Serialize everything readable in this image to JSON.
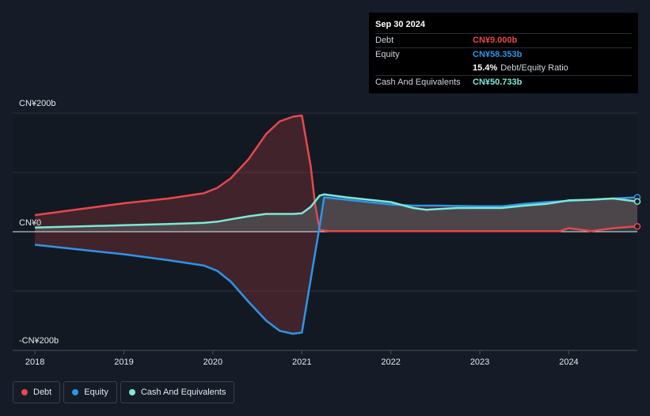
{
  "tooltip": {
    "date": "Sep 30 2024",
    "rows": [
      {
        "label": "Debt",
        "value": "CN¥9.000b",
        "color": "#e8474c",
        "extra": ""
      },
      {
        "label": "Equity",
        "value": "CN¥58.353b",
        "color": "#2e95e6",
        "extra": ""
      },
      {
        "label": "",
        "value": "15.4%",
        "color": "#ffffff",
        "extra": "Debt/Equity Ratio"
      },
      {
        "label": "Cash And Equivalents",
        "value": "CN¥50.733b",
        "color": "#7ee8d6",
        "extra": ""
      }
    ]
  },
  "legend": [
    {
      "label": "Debt",
      "color": "#e8474c"
    },
    {
      "label": "Equity",
      "color": "#2e95e6"
    },
    {
      "label": "Cash And Equivalents",
      "color": "#7ee8d6"
    }
  ],
  "chart_data": {
    "type": "area",
    "y_ticks": [
      {
        "value": 200,
        "label": "CN¥200b"
      },
      {
        "value": 0,
        "label": "CN¥0"
      },
      {
        "value": -200,
        "label": "-CN¥200b"
      }
    ],
    "x_ticks": [
      "2018",
      "2019",
      "2020",
      "2021",
      "2022",
      "2023",
      "2024"
    ],
    "xlim": [
      2017.75,
      2024.77
    ],
    "ylim": [
      -200,
      200
    ],
    "series": [
      {
        "name": "Debt",
        "color": "#e8474c",
        "points": [
          [
            2018.0,
            28
          ],
          [
            2018.5,
            38
          ],
          [
            2019.0,
            48
          ],
          [
            2019.5,
            56
          ],
          [
            2019.9,
            65
          ],
          [
            2020.05,
            74
          ],
          [
            2020.2,
            90
          ],
          [
            2020.4,
            122
          ],
          [
            2020.6,
            165
          ],
          [
            2020.75,
            186
          ],
          [
            2020.9,
            194
          ],
          [
            2021.0,
            196
          ],
          [
            2021.1,
            110
          ],
          [
            2021.15,
            45
          ],
          [
            2021.2,
            3
          ],
          [
            2021.3,
            1
          ],
          [
            2021.5,
            1
          ],
          [
            2022.0,
            1
          ],
          [
            2022.5,
            1
          ],
          [
            2023.0,
            1
          ],
          [
            2023.5,
            1
          ],
          [
            2023.9,
            1
          ],
          [
            2024.0,
            6
          ],
          [
            2024.25,
            1
          ],
          [
            2024.5,
            6
          ],
          [
            2024.77,
            9
          ]
        ]
      },
      {
        "name": "Equity",
        "color": "#2e95e6",
        "points": [
          [
            2018.0,
            -22
          ],
          [
            2018.5,
            -30
          ],
          [
            2019.0,
            -38
          ],
          [
            2019.5,
            -48
          ],
          [
            2019.9,
            -57
          ],
          [
            2020.05,
            -66
          ],
          [
            2020.2,
            -84
          ],
          [
            2020.4,
            -118
          ],
          [
            2020.6,
            -150
          ],
          [
            2020.75,
            -167
          ],
          [
            2020.9,
            -172
          ],
          [
            2021.0,
            -170
          ],
          [
            2021.1,
            -80
          ],
          [
            2021.2,
            10
          ],
          [
            2021.25,
            58
          ],
          [
            2021.5,
            54
          ],
          [
            2022.0,
            46
          ],
          [
            2022.25,
            44
          ],
          [
            2022.5,
            44
          ],
          [
            2023.0,
            43
          ],
          [
            2023.25,
            43
          ],
          [
            2023.5,
            47
          ],
          [
            2023.75,
            50
          ],
          [
            2024.0,
            52
          ],
          [
            2024.25,
            54
          ],
          [
            2024.5,
            56
          ],
          [
            2024.77,
            58
          ]
        ]
      },
      {
        "name": "Cash And Equivalents",
        "color": "#7ee8d6",
        "points": [
          [
            2018.0,
            7
          ],
          [
            2018.5,
            9
          ],
          [
            2019.0,
            11
          ],
          [
            2019.5,
            13
          ],
          [
            2019.9,
            15
          ],
          [
            2020.05,
            17
          ],
          [
            2020.2,
            21
          ],
          [
            2020.4,
            26
          ],
          [
            2020.6,
            30
          ],
          [
            2020.75,
            30
          ],
          [
            2020.9,
            30
          ],
          [
            2021.0,
            31
          ],
          [
            2021.1,
            42
          ],
          [
            2021.2,
            61
          ],
          [
            2021.25,
            63
          ],
          [
            2021.5,
            58
          ],
          [
            2022.0,
            50
          ],
          [
            2022.25,
            40
          ],
          [
            2022.4,
            37
          ],
          [
            2022.5,
            38
          ],
          [
            2022.75,
            40
          ],
          [
            2023.0,
            40
          ],
          [
            2023.25,
            40
          ],
          [
            2023.5,
            44
          ],
          [
            2023.75,
            47
          ],
          [
            2024.0,
            53
          ],
          [
            2024.25,
            54
          ],
          [
            2024.5,
            56
          ],
          [
            2024.77,
            51
          ]
        ]
      }
    ]
  }
}
